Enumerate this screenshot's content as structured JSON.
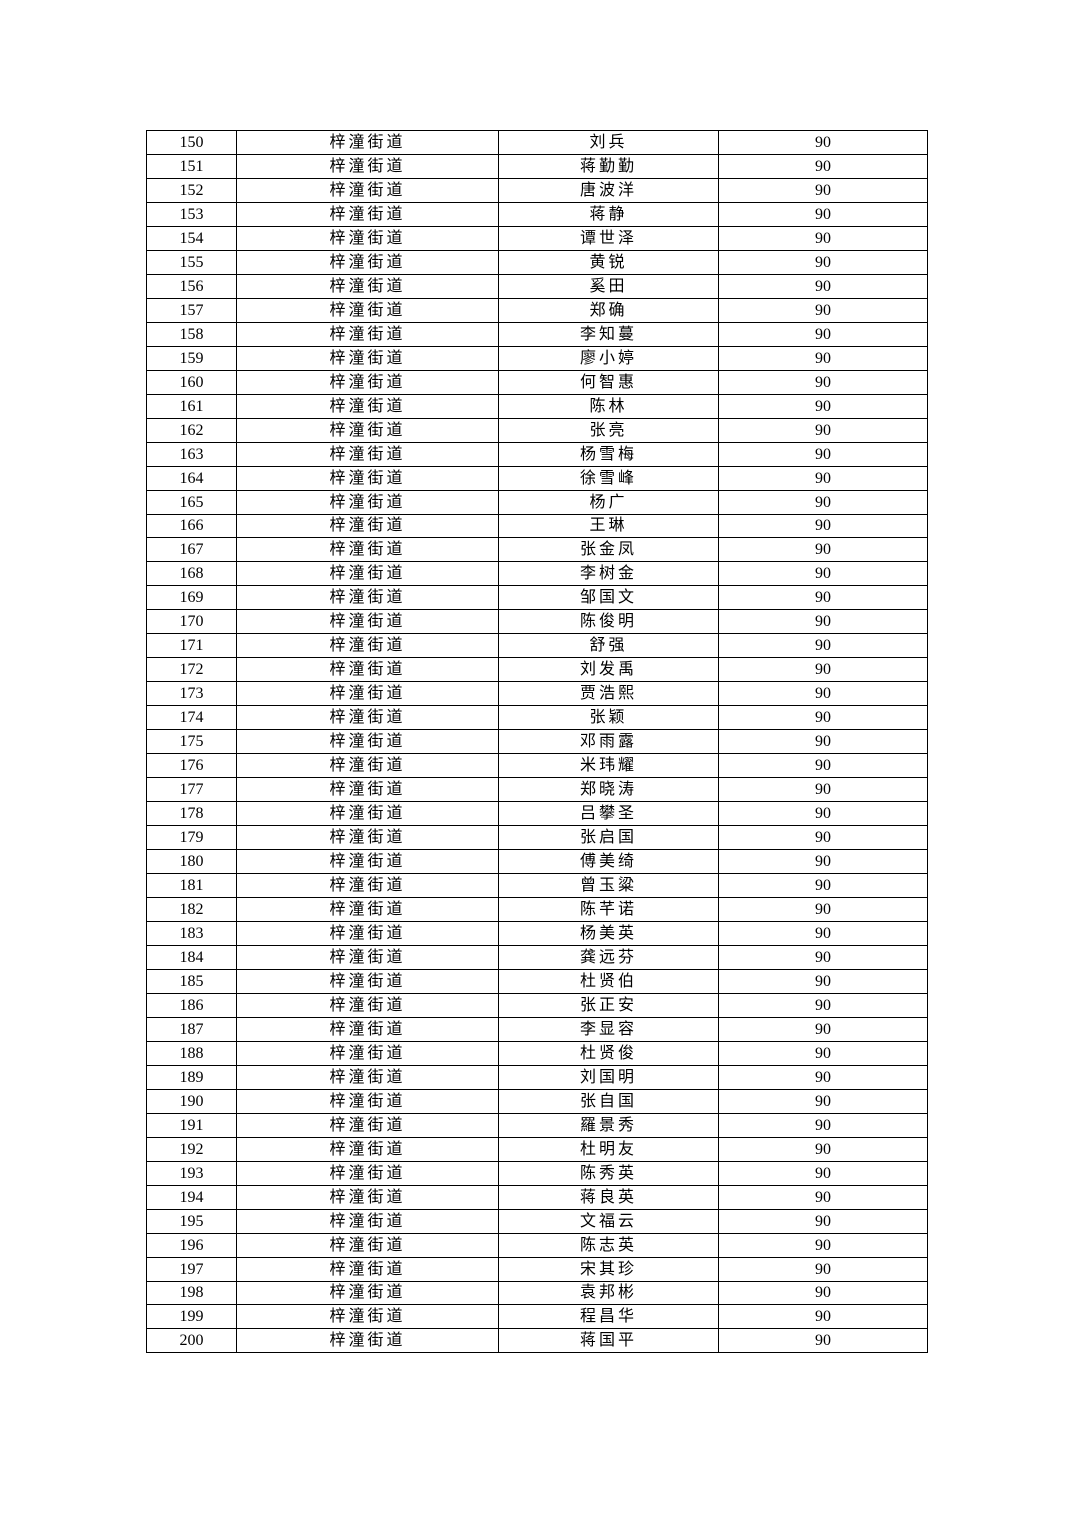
{
  "table": {
    "street": "梓潼街道",
    "rows": [
      [
        "150",
        "梓潼街道",
        "刘兵",
        "90"
      ],
      [
        "151",
        "梓潼街道",
        "蒋勤勤",
        "90"
      ],
      [
        "152",
        "梓潼街道",
        "唐波洋",
        "90"
      ],
      [
        "153",
        "梓潼街道",
        "蒋静",
        "90"
      ],
      [
        "154",
        "梓潼街道",
        "谭世泽",
        "90"
      ],
      [
        "155",
        "梓潼街道",
        "黄锐",
        "90"
      ],
      [
        "156",
        "梓潼街道",
        "奚田",
        "90"
      ],
      [
        "157",
        "梓潼街道",
        "郑确",
        "90"
      ],
      [
        "158",
        "梓潼街道",
        "李知蔓",
        "90"
      ],
      [
        "159",
        "梓潼街道",
        "廖小婷",
        "90"
      ],
      [
        "160",
        "梓潼街道",
        "何智惠",
        "90"
      ],
      [
        "161",
        "梓潼街道",
        "陈林",
        "90"
      ],
      [
        "162",
        "梓潼街道",
        "张亮",
        "90"
      ],
      [
        "163",
        "梓潼街道",
        "杨雪梅",
        "90"
      ],
      [
        "164",
        "梓潼街道",
        "徐雪峰",
        "90"
      ],
      [
        "165",
        "梓潼街道",
        "杨广",
        "90"
      ],
      [
        "166",
        "梓潼街道",
        "王琳",
        "90"
      ],
      [
        "167",
        "梓潼街道",
        "张金凤",
        "90"
      ],
      [
        "168",
        "梓潼街道",
        "李树金",
        "90"
      ],
      [
        "169",
        "梓潼街道",
        "邹国文",
        "90"
      ],
      [
        "170",
        "梓潼街道",
        "陈俊明",
        "90"
      ],
      [
        "171",
        "梓潼街道",
        "舒强",
        "90"
      ],
      [
        "172",
        "梓潼街道",
        "刘发禹",
        "90"
      ],
      [
        "173",
        "梓潼街道",
        "贾浩熙",
        "90"
      ],
      [
        "174",
        "梓潼街道",
        "张颖",
        "90"
      ],
      [
        "175",
        "梓潼街道",
        "邓雨露",
        "90"
      ],
      [
        "176",
        "梓潼街道",
        "米玮耀",
        "90"
      ],
      [
        "177",
        "梓潼街道",
        "郑晓涛",
        "90"
      ],
      [
        "178",
        "梓潼街道",
        "吕攀圣",
        "90"
      ],
      [
        "179",
        "梓潼街道",
        "张启国",
        "90"
      ],
      [
        "180",
        "梓潼街道",
        "傅美绮",
        "90"
      ],
      [
        "181",
        "梓潼街道",
        "曾玉粱",
        "90"
      ],
      [
        "182",
        "梓潼街道",
        "陈芊诺",
        "90"
      ],
      [
        "183",
        "梓潼街道",
        "杨美英",
        "90"
      ],
      [
        "184",
        "梓潼街道",
        "龚远芬",
        "90"
      ],
      [
        "185",
        "梓潼街道",
        "杜贤伯",
        "90"
      ],
      [
        "186",
        "梓潼街道",
        "张正安",
        "90"
      ],
      [
        "187",
        "梓潼街道",
        "李显容",
        "90"
      ],
      [
        "188",
        "梓潼街道",
        "杜贤俊",
        "90"
      ],
      [
        "189",
        "梓潼街道",
        "刘国明",
        "90"
      ],
      [
        "190",
        "梓潼街道",
        "张自国",
        "90"
      ],
      [
        "191",
        "梓潼街道",
        "羅景秀",
        "90"
      ],
      [
        "192",
        "梓潼街道",
        "杜明友",
        "90"
      ],
      [
        "193",
        "梓潼街道",
        "陈秀英",
        "90"
      ],
      [
        "194",
        "梓潼街道",
        "蒋良英",
        "90"
      ],
      [
        "195",
        "梓潼街道",
        "文福云",
        "90"
      ],
      [
        "196",
        "梓潼街道",
        "陈志英",
        "90"
      ],
      [
        "197",
        "梓潼街道",
        "宋其珍",
        "90"
      ],
      [
        "198",
        "梓潼街道",
        "袁邦彬",
        "90"
      ],
      [
        "199",
        "梓潼街道",
        "程昌华",
        "90"
      ],
      [
        "200",
        "梓潼街道",
        "蒋国平",
        "90"
      ]
    ]
  }
}
